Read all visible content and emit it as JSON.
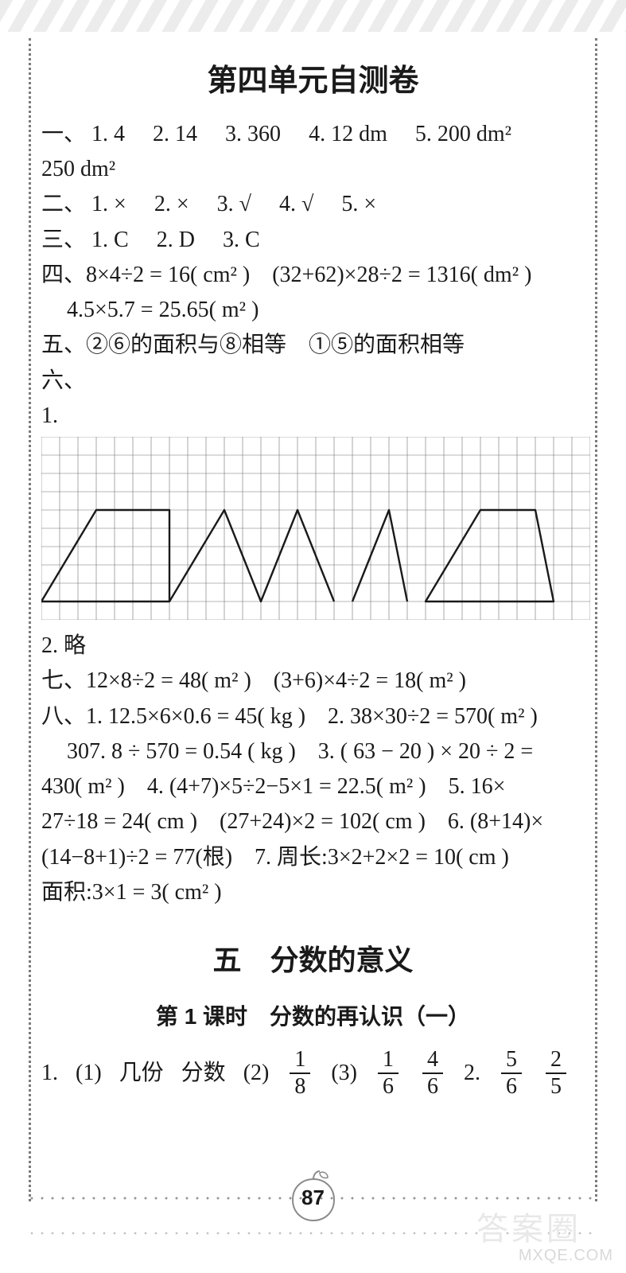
{
  "headings": {
    "unit_test": "第四单元自测卷",
    "chapter5": "五　分数的意义",
    "lesson1": "第 1 课时　分数的再认识（一）"
  },
  "section1": {
    "label": "一、",
    "items": [
      "1. 4",
      "2. 14",
      "3. 360",
      "4. 12 dm",
      "5. 200 dm²"
    ],
    "cont": "250 dm²"
  },
  "section2": {
    "label": "二、",
    "items": [
      "1. ×",
      "2. ×",
      "3. √",
      "4. √",
      "5. ×"
    ]
  },
  "section3": {
    "label": "三、",
    "items": [
      "1. C",
      "2. D",
      "3. C"
    ]
  },
  "section4": {
    "label": "四、",
    "line1": "8×4÷2 = 16( cm² )　(32+62)×28÷2 = 1316( dm² )",
    "line2": "4.5×5.7 = 25.65( m² )"
  },
  "section5": {
    "label": "五、",
    "text": "②⑥的面积与⑧相等　①⑤的面积相等"
  },
  "section6": {
    "label": "六、",
    "item1_label": "1.",
    "item2": "2. 略"
  },
  "grid_chart": {
    "cols": 30,
    "rows": 10,
    "cell": 23,
    "stroke": "#1a1a1a",
    "grid_stroke": "#707070",
    "grid_width": 0.6,
    "shape_width": 2.4,
    "shapes": [
      {
        "type": "polygon",
        "points": [
          [
            0,
            9
          ],
          [
            3,
            4
          ],
          [
            7,
            4
          ],
          [
            7,
            9
          ]
        ]
      },
      {
        "type": "polyline",
        "points": [
          [
            7,
            9
          ],
          [
            10,
            4
          ],
          [
            12,
            9
          ],
          [
            14,
            4
          ],
          [
            16,
            9
          ]
        ]
      },
      {
        "type": "polyline",
        "points": [
          [
            17,
            9
          ],
          [
            19,
            4
          ],
          [
            20,
            9
          ]
        ]
      },
      {
        "type": "polygon",
        "points": [
          [
            21,
            9
          ],
          [
            24,
            4
          ],
          [
            27,
            4
          ],
          [
            28,
            9
          ]
        ]
      }
    ]
  },
  "section7": {
    "label": "七、",
    "text": "12×8÷2 = 48( m² )　(3+6)×4÷2 = 18( m² )"
  },
  "section8": {
    "label": "八、",
    "l1": "1. 12.5×6×0.6 = 45( kg )　2. 38×30÷2 = 570( m² )",
    "l2": "307. 8 ÷ 570 = 0.54 ( kg )　3. ( 63 − 20 ) × 20 ÷ 2 =",
    "l3": "430( m² )　4. (4+7)×5÷2−5×1 = 22.5( m² )　5. 16×",
    "l4": "27÷18 = 24( cm )　(27+24)×2 = 102( cm )　6. (8+14)×",
    "l5": "(14−8+1)÷2 = 77(根)　7. 周长:3×2+2×2 = 10( cm )",
    "l6": "面积:3×1 = 3( cm² )"
  },
  "lesson1_answers": {
    "q1_label": "1.",
    "q1_1_label": "(1)",
    "q1_1_a": "几份",
    "q1_1_b": "分数",
    "q1_2_label": "(2)",
    "q1_2_frac": {
      "n": "1",
      "d": "8"
    },
    "q1_3_label": "(3)",
    "q1_3_frac_a": {
      "n": "1",
      "d": "6"
    },
    "q1_3_frac_b": {
      "n": "4",
      "d": "6"
    },
    "q2_label": "2.",
    "q2_frac_a": {
      "n": "5",
      "d": "6"
    },
    "q2_frac_b": {
      "n": "2",
      "d": "5"
    }
  },
  "page_number": "87",
  "watermarks": {
    "big": "答案圈",
    "small": "MXQE.COM"
  }
}
